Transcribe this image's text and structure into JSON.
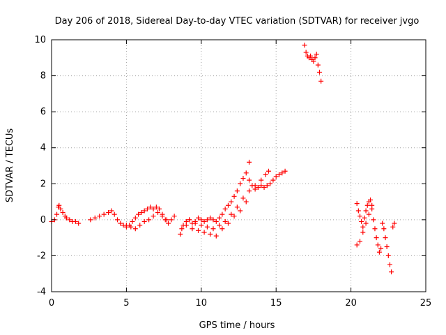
{
  "chart_data": {
    "type": "scatter",
    "title": "Day 206 of 2018, Sidereal Day-to-day VTEC variation (SDTVAR) for receiver jvgo",
    "xlabel": "GPS time / hours",
    "ylabel": "SDTVAR / TECUs",
    "xlim": [
      0,
      25
    ],
    "ylim": [
      -4,
      10
    ],
    "xticks": [
      "0",
      "5",
      "10",
      "15",
      "20",
      "25"
    ],
    "yticks": [
      "-4",
      "-2",
      "0",
      "2",
      "4",
      "6",
      "8",
      "10"
    ],
    "grid": true,
    "marker": "plus",
    "color": "#ff0000",
    "series": [
      {
        "name": "sdtvar",
        "x": [
          0.0,
          0.2,
          0.35,
          0.45,
          0.5,
          0.6,
          0.75,
          0.9,
          1.0,
          1.2,
          1.4,
          1.6,
          1.8,
          2.6,
          2.9,
          3.2,
          3.5,
          3.8,
          4.0,
          4.2,
          4.4,
          4.6,
          4.8,
          5.0,
          5.2,
          5.4,
          5.6,
          5.8,
          6.0,
          6.2,
          6.4,
          6.6,
          6.8,
          7.0,
          7.2,
          7.4,
          7.6,
          7.8,
          8.0,
          8.2,
          5.0,
          5.3,
          5.6,
          5.9,
          6.2,
          6.5,
          6.8,
          7.1,
          7.4,
          7.7,
          8.6,
          8.7,
          8.8,
          9.0,
          9.2,
          9.4,
          9.6,
          9.8,
          10.0,
          10.2,
          10.4,
          10.6,
          10.8,
          11.0,
          11.2,
          11.4,
          11.6,
          11.8,
          12.0,
          12.2,
          12.4,
          12.6,
          12.8,
          13.0,
          13.2,
          13.4,
          13.6,
          13.8,
          14.0,
          14.2,
          14.4,
          14.6,
          14.8,
          15.0,
          15.2,
          15.4,
          15.6,
          9.0,
          9.4,
          9.8,
          10.2,
          10.6,
          11.0,
          11.4,
          11.8,
          12.2,
          12.6,
          13.0,
          13.2,
          9.2,
          9.6,
          10.0,
          10.4,
          10.8,
          11.2,
          11.6,
          12.0,
          12.4,
          12.8,
          13.2,
          13.6,
          14.0,
          14.3,
          14.5,
          16.9,
          17.0,
          17.1,
          17.2,
          17.3,
          17.4,
          17.5,
          17.6,
          17.7,
          17.8,
          17.9,
          18.0,
          20.4,
          20.5,
          20.6,
          20.7,
          20.8,
          20.9,
          21.0,
          21.1,
          21.2,
          21.3,
          21.4,
          21.5,
          21.6,
          21.7,
          21.8,
          21.9,
          22.0,
          20.4,
          20.6,
          20.8,
          21.0,
          21.2,
          21.4,
          22.1,
          22.2,
          22.3,
          22.4,
          22.5,
          22.6,
          22.7,
          22.8,
          22.9
        ],
        "y": [
          -0.1,
          0.0,
          0.3,
          0.7,
          0.8,
          0.6,
          0.4,
          0.2,
          0.1,
          0.0,
          -0.1,
          -0.1,
          -0.2,
          0.0,
          0.1,
          0.2,
          0.3,
          0.4,
          0.5,
          0.3,
          0.0,
          -0.2,
          -0.3,
          -0.4,
          -0.3,
          -0.1,
          0.1,
          0.3,
          0.4,
          0.5,
          0.6,
          0.7,
          0.6,
          0.7,
          0.6,
          0.3,
          0.0,
          -0.2,
          0.0,
          0.2,
          -0.3,
          -0.4,
          -0.5,
          -0.3,
          -0.1,
          0.0,
          0.2,
          0.4,
          0.2,
          0.0,
          -0.8,
          -0.5,
          -0.3,
          -0.1,
          0.0,
          -0.2,
          -0.1,
          0.1,
          0.0,
          -0.1,
          0.0,
          0.1,
          0.0,
          -0.1,
          0.1,
          0.3,
          0.6,
          0.8,
          1.0,
          1.3,
          1.6,
          2.0,
          2.3,
          2.6,
          2.2,
          1.9,
          1.7,
          1.8,
          1.9,
          1.8,
          1.9,
          2.0,
          2.2,
          2.4,
          2.5,
          2.6,
          2.7,
          -0.3,
          -0.5,
          -0.6,
          -0.7,
          -0.8,
          -0.9,
          -0.5,
          -0.2,
          0.2,
          0.5,
          1.0,
          3.2,
          0.0,
          -0.2,
          -0.3,
          -0.4,
          -0.5,
          -0.3,
          -0.1,
          0.3,
          0.7,
          1.2,
          1.6,
          1.9,
          2.2,
          2.5,
          2.7,
          9.7,
          9.3,
          9.1,
          9.0,
          9.1,
          8.9,
          8.8,
          9.0,
          9.2,
          8.6,
          8.2,
          7.7,
          0.9,
          0.5,
          0.2,
          -0.1,
          -0.4,
          0.1,
          0.5,
          0.8,
          1.0,
          1.1,
          0.6,
          0.0,
          -0.5,
          -1.0,
          -1.4,
          -1.8,
          -1.6,
          -1.4,
          -1.2,
          -0.7,
          -0.2,
          0.3,
          0.8,
          -0.2,
          -0.5,
          -1.0,
          -1.5,
          -2.0,
          -2.5,
          -2.9,
          -0.4,
          -0.2
        ]
      }
    ]
  }
}
